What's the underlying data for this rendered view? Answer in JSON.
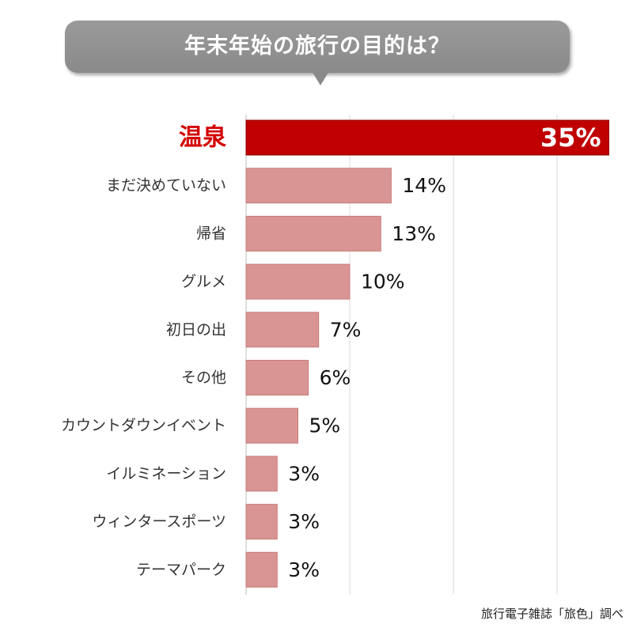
{
  "title": "年末年始の旅行の目的は？",
  "source": "旅行電子雑誌「旅色」調べ",
  "colors": {
    "highlight_bar": "#c00000",
    "highlight_label": "#d40000",
    "bar": "#d99594",
    "title_bubble": "#8f8f8f",
    "grid": "#d9d9d9"
  },
  "chart_data": {
    "type": "bar",
    "orientation": "horizontal",
    "categories": [
      "温泉",
      "まだ決めていない",
      "帰省",
      "グルメ",
      "初日の出",
      "その他",
      "カウントダウンイベント",
      "イルミネーション",
      "ウィンタースポーツ",
      "テーマパーク"
    ],
    "values": [
      35,
      14,
      13,
      10,
      7,
      6,
      5,
      3,
      3,
      3
    ],
    "value_labels": [
      "35%",
      "14%",
      "13%",
      "10%",
      "7%",
      "6%",
      "5%",
      "3%",
      "3%",
      "3%"
    ],
    "highlight_index": 0,
    "xlim": [
      0,
      35
    ],
    "grid": true,
    "unit": "%"
  }
}
